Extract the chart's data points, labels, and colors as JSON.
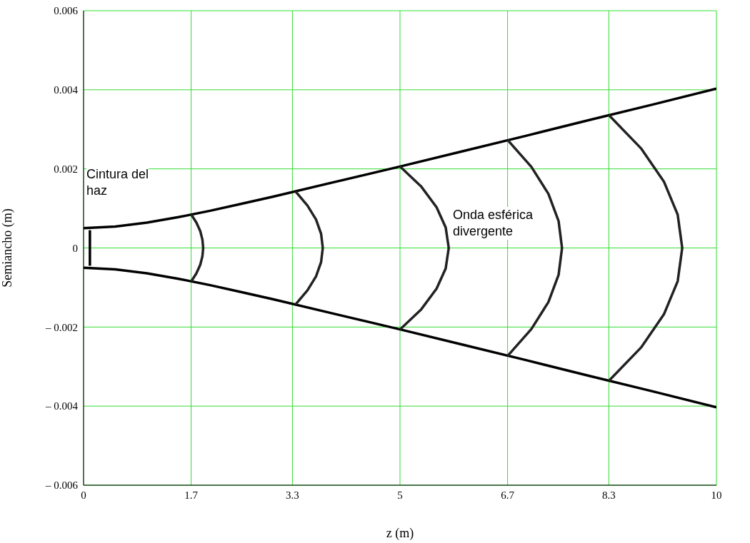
{
  "chart_data": {
    "type": "line",
    "xlabel": "z (m)",
    "ylabel": "Semiancho (m)",
    "xlim": [
      0,
      10
    ],
    "xticks": [
      0,
      1.7,
      3.3,
      5,
      6.7,
      8.3,
      10
    ],
    "ylim": [
      -0.006,
      0.006
    ],
    "yticks": [
      {
        "value": -0.006,
        "label": "– 0.006"
      },
      {
        "value": -0.004,
        "label": "– 0.004"
      },
      {
        "value": -0.002,
        "label": "– 0.002"
      },
      0,
      0.002,
      0.004,
      0.006
    ],
    "grid": true,
    "marker": "none",
    "line_style": "solid",
    "series": [
      {
        "color": "#000000",
        "x": [
          0,
          0.5,
          1,
          1.5,
          2,
          2.5,
          3,
          4,
          5,
          6,
          7,
          8,
          9,
          10
        ],
        "values": [
          0.0005,
          0.00054,
          0.00064,
          0.00078,
          0.00094,
          0.00112,
          0.0013,
          0.00168,
          0.00206,
          0.00245,
          0.00284,
          0.00324,
          0.00363,
          0.00403
        ]
      },
      {
        "color": "#000000",
        "x": [
          0,
          0.5,
          1,
          1.5,
          2,
          2.5,
          3,
          4,
          5,
          6,
          7,
          8,
          9,
          10
        ],
        "values": [
          -0.0005,
          -0.00054,
          -0.00064,
          -0.00078,
          -0.00094,
          -0.00112,
          -0.0013,
          -0.00168,
          -0.00206,
          -0.00245,
          -0.00284,
          -0.00324,
          -0.00363,
          -0.00403
        ]
      },
      {
        "color": "#000000",
        "x": [
          0.1,
          0.1
        ],
        "values": [
          0.00045,
          -0.00045
        ]
      },
      {
        "color": "#222222",
        "x": [
          1.7,
          1.783,
          1.843,
          1.878,
          1.89,
          1.878,
          1.843,
          1.783,
          1.7
        ],
        "values": [
          0.00085,
          0.00064,
          0.00043,
          0.00021,
          0,
          -0.00021,
          -0.00043,
          -0.00064,
          -0.00085
        ]
      },
      {
        "color": "#222222",
        "x": [
          3.35,
          3.538,
          3.673,
          3.753,
          3.78,
          3.753,
          3.673,
          3.538,
          3.35
        ],
        "values": [
          0.00143,
          0.00107,
          0.00072,
          0.00036,
          0,
          -0.00036,
          -0.00072,
          -0.00107,
          -0.00143
        ]
      },
      {
        "color": "#222222",
        "x": [
          5.0,
          5.337,
          5.578,
          5.722,
          5.77,
          5.722,
          5.578,
          5.337,
          5.0
        ],
        "values": [
          0.00206,
          0.00155,
          0.00103,
          0.00052,
          0,
          -0.00052,
          -0.00103,
          -0.00155,
          -0.00206
        ]
      },
      {
        "color": "#222222",
        "x": [
          6.7,
          7.076,
          7.345,
          7.506,
          7.56,
          7.506,
          7.345,
          7.076,
          6.7
        ],
        "values": [
          0.00273,
          0.00205,
          0.00137,
          0.00068,
          0,
          -0.00068,
          -0.00137,
          -0.00205,
          -0.00273
        ]
      },
      {
        "color": "#222222",
        "x": [
          8.3,
          8.808,
          9.17,
          9.388,
          9.46,
          9.388,
          9.17,
          8.808,
          8.3
        ],
        "values": [
          0.00336,
          0.00252,
          0.00168,
          0.00084,
          0,
          -0.00084,
          -0.00168,
          -0.00252,
          -0.00336
        ]
      }
    ],
    "annotations": [
      "Cintura del haz",
      "Onda esférica divergente"
    ]
  }
}
